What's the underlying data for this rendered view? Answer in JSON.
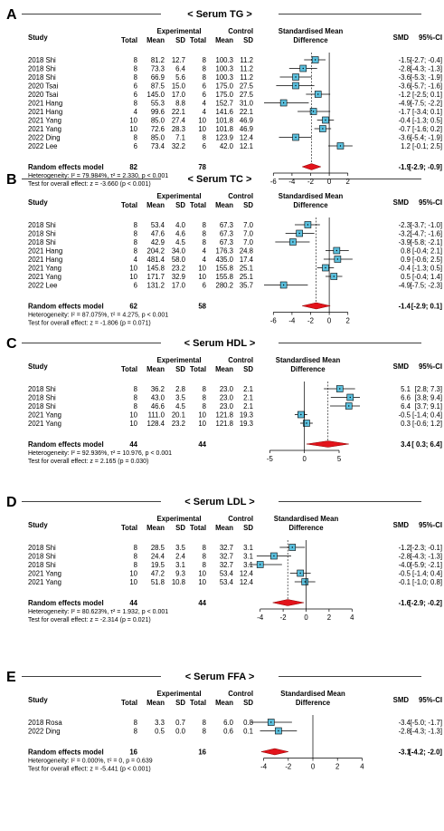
{
  "headers": {
    "study": "Study",
    "experimental": "Experimental",
    "control": "Control",
    "smd_line1": "Standardised Mean",
    "smd_line2": "Difference",
    "total": "Total",
    "mean": "Mean",
    "sd": "SD",
    "smd": "SMD",
    "ci": "95%-CI"
  },
  "chart_data": [
    {
      "type": "forest",
      "panel": "A",
      "title": "< Serum TG >",
      "xlim": [
        -7,
        3
      ],
      "xticks": [
        -6,
        -4,
        -2,
        0,
        2
      ],
      "rows": [
        {
          "study": "2018 Shi",
          "e_total": "8",
          "e_mean": "81.2",
          "e_sd": "12.7",
          "c_total": "8",
          "c_mean": "100.3",
          "c_sd": "11.2",
          "smd": -1.5,
          "lo": -2.7,
          "hi": -0.4,
          "smd_text": "-1.5",
          "ci_text": "[-2.7; -0.4]"
        },
        {
          "study": "2018 Shi",
          "e_total": "8",
          "e_mean": "73.3",
          "e_sd": "6.4",
          "c_total": "8",
          "c_mean": "100.3",
          "c_sd": "11.2",
          "smd": -2.8,
          "lo": -4.3,
          "hi": -1.3,
          "smd_text": "-2.8",
          "ci_text": "[-4.3; -1.3]"
        },
        {
          "study": "2018 Shi",
          "e_total": "8",
          "e_mean": "66.9",
          "e_sd": "5.6",
          "c_total": "8",
          "c_mean": "100.3",
          "c_sd": "11.2",
          "smd": -3.6,
          "lo": -5.3,
          "hi": -1.9,
          "smd_text": "-3.6",
          "ci_text": "[-5.3; -1.9]"
        },
        {
          "study": "2020 Tsai",
          "e_total": "6",
          "e_mean": "87.5",
          "e_sd": "15.0",
          "c_total": "6",
          "c_mean": "175.0",
          "c_sd": "27.5",
          "smd": -3.6,
          "lo": -5.7,
          "hi": -1.6,
          "smd_text": "-3.6",
          "ci_text": "[-5.7; -1.6]"
        },
        {
          "study": "2020 Tsai",
          "e_total": "6",
          "e_mean": "145.0",
          "e_sd": "17.0",
          "c_total": "6",
          "c_mean": "175.0",
          "c_sd": "27.5",
          "smd": -1.2,
          "lo": -2.5,
          "hi": 0.1,
          "smd_text": "-1.2",
          "ci_text": "[-2.5; 0.1]"
        },
        {
          "study": "2021 Hang",
          "e_total": "8",
          "e_mean": "55.3",
          "e_sd": "8.8",
          "c_total": "4",
          "c_mean": "152.7",
          "c_sd": "31.0",
          "smd": -4.9,
          "lo": -7.5,
          "hi": -2.2,
          "smd_text": "-4.9",
          "ci_text": "[-7.5; -2.2]"
        },
        {
          "study": "2021 Hang",
          "e_total": "4",
          "e_mean": "99.6",
          "e_sd": "22.1",
          "c_total": "4",
          "c_mean": "141.6",
          "c_sd": "22.1",
          "smd": -1.7,
          "lo": -3.4,
          "hi": 0.1,
          "smd_text": "-1.7",
          "ci_text": "[-3.4; 0.1]"
        },
        {
          "study": "2021 Yang",
          "e_total": "10",
          "e_mean": "85.0",
          "e_sd": "27.4",
          "c_total": "10",
          "c_mean": "101.8",
          "c_sd": "46.9",
          "smd": -0.4,
          "lo": -1.3,
          "hi": 0.5,
          "smd_text": "-0.4",
          "ci_text": "[-1.3; 0.5]"
        },
        {
          "study": "2021 Yang",
          "e_total": "10",
          "e_mean": "72.6",
          "e_sd": "28.3",
          "c_total": "10",
          "c_mean": "101.8",
          "c_sd": "46.9",
          "smd": -0.7,
          "lo": -1.6,
          "hi": 0.2,
          "smd_text": "-0.7",
          "ci_text": "[-1.6; 0.2]"
        },
        {
          "study": "2022 Ding",
          "e_total": "8",
          "e_mean": "85.0",
          "e_sd": "7.1",
          "c_total": "8",
          "c_mean": "123.9",
          "c_sd": "12.4",
          "smd": -3.6,
          "lo": -5.4,
          "hi": -1.9,
          "smd_text": "-3.6",
          "ci_text": "[-5.4; -1.9]"
        },
        {
          "study": "2022 Lee",
          "e_total": "6",
          "e_mean": "73.4",
          "e_sd": "32.2",
          "c_total": "6",
          "c_mean": "42.0",
          "c_sd": "12.1",
          "smd": 1.2,
          "lo": -0.1,
          "hi": 2.5,
          "smd_text": "1.2",
          "ci_text": "[-0.1; 2.5]"
        }
      ],
      "pooled": {
        "label": "Random effects model",
        "e_total": "82",
        "c_total": "78",
        "smd": -1.9,
        "lo": -2.9,
        "hi": -0.9,
        "smd_text": "-1.9",
        "ci_text": "[-2.9; -0.9]"
      },
      "heterogeneity": "Heterogeneity: I² = 79.984%, τ² = 2.330, p < 0.001",
      "overall_test": "Test for overall effect: z = -3.660 (p < 0.001)"
    },
    {
      "type": "forest",
      "panel": "B",
      "title": "< Serum TC >",
      "xlim": [
        -7,
        3
      ],
      "xticks": [
        -6,
        -4,
        -2,
        0,
        2
      ],
      "rows": [
        {
          "study": "2018 Shi",
          "e_total": "8",
          "e_mean": "53.4",
          "e_sd": "4.0",
          "c_total": "8",
          "c_mean": "67.3",
          "c_sd": "7.0",
          "smd": -2.3,
          "lo": -3.7,
          "hi": -1.0,
          "smd_text": "-2.3",
          "ci_text": "[-3.7; -1.0]"
        },
        {
          "study": "2018 Shi",
          "e_total": "8",
          "e_mean": "47.6",
          "e_sd": "4.6",
          "c_total": "8",
          "c_mean": "67.3",
          "c_sd": "7.0",
          "smd": -3.2,
          "lo": -4.7,
          "hi": -1.6,
          "smd_text": "-3.2",
          "ci_text": "[-4.7; -1.6]"
        },
        {
          "study": "2018 Shi",
          "e_total": "8",
          "e_mean": "42.9",
          "e_sd": "4.5",
          "c_total": "8",
          "c_mean": "67.3",
          "c_sd": "7.0",
          "smd": -3.9,
          "lo": -5.8,
          "hi": -2.1,
          "smd_text": "-3.9",
          "ci_text": "[-5.8; -2.1]"
        },
        {
          "study": "2021 Hang",
          "e_total": "8",
          "e_mean": "204.2",
          "e_sd": "34.0",
          "c_total": "4",
          "c_mean": "176.3",
          "c_sd": "24.8",
          "smd": 0.8,
          "lo": -0.4,
          "hi": 2.1,
          "smd_text": "0.8",
          "ci_text": "[-0.4; 2.1]"
        },
        {
          "study": "2021 Hang",
          "e_total": "4",
          "e_mean": "481.4",
          "e_sd": "58.0",
          "c_total": "4",
          "c_mean": "435.0",
          "c_sd": "17.4",
          "smd": 0.9,
          "lo": -0.6,
          "hi": 2.5,
          "smd_text": "0.9",
          "ci_text": "[-0.6; 2.5]"
        },
        {
          "study": "2021 Yang",
          "e_total": "10",
          "e_mean": "145.8",
          "e_sd": "23.2",
          "c_total": "10",
          "c_mean": "155.8",
          "c_sd": "25.1",
          "smd": -0.4,
          "lo": -1.3,
          "hi": 0.5,
          "smd_text": "-0.4",
          "ci_text": "[-1.3; 0.5]"
        },
        {
          "study": "2021 Yang",
          "e_total": "10",
          "e_mean": "171.7",
          "e_sd": "32.9",
          "c_total": "10",
          "c_mean": "155.8",
          "c_sd": "25.1",
          "smd": 0.5,
          "lo": -0.4,
          "hi": 1.4,
          "smd_text": "0.5",
          "ci_text": "[-0.4; 1.4]"
        },
        {
          "study": "2022 Lee",
          "e_total": "6",
          "e_mean": "131.2",
          "e_sd": "17.0",
          "c_total": "6",
          "c_mean": "280.2",
          "c_sd": "35.7",
          "smd": -4.9,
          "lo": -7.5,
          "hi": -2.3,
          "smd_text": "-4.9",
          "ci_text": "[-7.5; -2.3]"
        }
      ],
      "pooled": {
        "label": "Random effects model",
        "e_total": "62",
        "c_total": "58",
        "smd": -1.4,
        "lo": -2.9,
        "hi": 0.1,
        "smd_text": "-1.4",
        "ci_text": "[-2.9; 0.1]"
      },
      "heterogeneity": "Heterogeneity: I² = 87.075%, τ² = 4.275, p < 0.001",
      "overall_test": "Test for overall effect: z = -1.806 (p = 0.071)"
    },
    {
      "type": "forest",
      "panel": "C",
      "title": "< Serum HDL >",
      "xlim": [
        -7,
        8
      ],
      "xticks": [
        -5,
        0,
        5
      ],
      "rows": [
        {
          "study": "2018 Shi",
          "e_total": "8",
          "e_mean": "36.2",
          "e_sd": "2.8",
          "c_total": "8",
          "c_mean": "23.0",
          "c_sd": "2.1",
          "smd": 5.1,
          "lo": 2.8,
          "hi": 7.3,
          "smd_text": "5.1",
          "ci_text": "[2.8; 7.3]"
        },
        {
          "study": "2018 Shi",
          "e_total": "8",
          "e_mean": "43.0",
          "e_sd": "3.5",
          "c_total": "8",
          "c_mean": "23.0",
          "c_sd": "2.1",
          "smd": 6.6,
          "lo": 3.8,
          "hi": 9.4,
          "smd_text": "6.6",
          "ci_text": "[3.8; 9.4]"
        },
        {
          "study": "2018 Shi",
          "e_total": "8",
          "e_mean": "46.6",
          "e_sd": "4.5",
          "c_total": "8",
          "c_mean": "23.0",
          "c_sd": "2.1",
          "smd": 6.4,
          "lo": 3.7,
          "hi": 9.1,
          "smd_text": "6.4",
          "ci_text": "[3.7; 9.1]"
        },
        {
          "study": "2021 Yang",
          "e_total": "10",
          "e_mean": "111.0",
          "e_sd": "20.1",
          "c_total": "10",
          "c_mean": "121.8",
          "c_sd": "19.3",
          "smd": -0.5,
          "lo": -1.4,
          "hi": 0.4,
          "smd_text": "-0.5",
          "ci_text": "[-1.4; 0.4]"
        },
        {
          "study": "2021 Yang",
          "e_total": "10",
          "e_mean": "128.4",
          "e_sd": "23.2",
          "c_total": "10",
          "c_mean": "121.8",
          "c_sd": "19.3",
          "smd": 0.3,
          "lo": -0.6,
          "hi": 1.2,
          "smd_text": "0.3",
          "ci_text": "[-0.6; 1.2]"
        }
      ],
      "pooled": {
        "label": "Random effects model",
        "e_total": "44",
        "c_total": "44",
        "smd": 3.4,
        "lo": 0.3,
        "hi": 6.4,
        "smd_text": "3.4",
        "ci_text": "[ 0.3; 6.4]"
      },
      "heterogeneity": "Heterogeneity: I² = 92.936%, τ² = 10.976, p < 0.001",
      "overall_test": "Test for overall effect: z = 2.165 (p = 0.030)"
    },
    {
      "type": "forest",
      "panel": "D",
      "title": "< Serum LDL >",
      "xlim": [
        -5,
        5
      ],
      "xticks": [
        -4,
        -2,
        0,
        2,
        4
      ],
      "rows": [
        {
          "study": "2018 Shi",
          "e_total": "8",
          "e_mean": "28.5",
          "e_sd": "3.5",
          "c_total": "8",
          "c_mean": "32.7",
          "c_sd": "3.1",
          "smd": -1.2,
          "lo": -2.3,
          "hi": -0.1,
          "smd_text": "-1.2",
          "ci_text": "[-2.3; -0.1]"
        },
        {
          "study": "2018 Shi",
          "e_total": "8",
          "e_mean": "24.4",
          "e_sd": "2.4",
          "c_total": "8",
          "c_mean": "32.7",
          "c_sd": "3.1",
          "smd": -2.8,
          "lo": -4.3,
          "hi": -1.3,
          "smd_text": "-2.8",
          "ci_text": "[-4.3; -1.3]"
        },
        {
          "study": "2018 Shi",
          "e_total": "8",
          "e_mean": "19.5",
          "e_sd": "3.1",
          "c_total": "8",
          "c_mean": "32.7",
          "c_sd": "3.1",
          "smd": -4.0,
          "lo": -5.9,
          "hi": -2.1,
          "smd_text": "-4.0",
          "ci_text": "[-5.9; -2.1]"
        },
        {
          "study": "2021 Yang",
          "e_total": "10",
          "e_mean": "47.2",
          "e_sd": "9.3",
          "c_total": "10",
          "c_mean": "53.4",
          "c_sd": "12.4",
          "smd": -0.5,
          "lo": -1.4,
          "hi": 0.4,
          "smd_text": "-0.5",
          "ci_text": "[-1.4; 0.4]"
        },
        {
          "study": "2021 Yang",
          "e_total": "10",
          "e_mean": "51.8",
          "e_sd": "10.8",
          "c_total": "10",
          "c_mean": "53.4",
          "c_sd": "12.4",
          "smd": -0.1,
          "lo": -1.0,
          "hi": 0.8,
          "smd_text": "-0.1",
          "ci_text": "[-1.0; 0.8]"
        }
      ],
      "pooled": {
        "label": "Random effects model",
        "e_total": "44",
        "c_total": "44",
        "smd": -1.6,
        "lo": -2.9,
        "hi": -0.2,
        "smd_text": "-1.6",
        "ci_text": "[-2.9; -0.2]"
      },
      "heterogeneity": "Heterogeneity: I² = 80.623%, τ² = 1.932, p < 0.001",
      "overall_test": "Test for overall effect: z = -2.314 (p = 0.021)"
    },
    {
      "type": "forest",
      "panel": "E",
      "title": "< Serum FFA >",
      "xlim": [
        -5,
        5
      ],
      "xticks": [
        -4,
        -2,
        0,
        2,
        4
      ],
      "rows": [
        {
          "study": "2018 Rosa",
          "e_total": "8",
          "e_mean": "3.3",
          "e_sd": "0.7",
          "c_total": "8",
          "c_mean": "6.0",
          "c_sd": "0.8",
          "smd": -3.4,
          "lo": -5.0,
          "hi": -1.7,
          "smd_text": "-3.4",
          "ci_text": "[-5.0; -1.7]"
        },
        {
          "study": "2022 Ding",
          "e_total": "8",
          "e_mean": "0.5",
          "e_sd": "0.0",
          "c_total": "8",
          "c_mean": "0.6",
          "c_sd": "0.1",
          "smd": -2.8,
          "lo": -4.3,
          "hi": -1.3,
          "smd_text": "-2.8",
          "ci_text": "[-4.3; -1.3]"
        }
      ],
      "pooled": {
        "label": "Random effects model",
        "e_total": "16",
        "c_total": "16",
        "smd": -3.1,
        "lo": -4.2,
        "hi": -2.0,
        "smd_text": "-3.1",
        "ci_text": "[-4.2; -2.0]"
      },
      "heterogeneity": "Heterogeneity: I² = 0.000%, τ² = 0, p = 0.639",
      "overall_test": "Test for overall effect: z = -5.441 (p < 0.001)"
    }
  ]
}
